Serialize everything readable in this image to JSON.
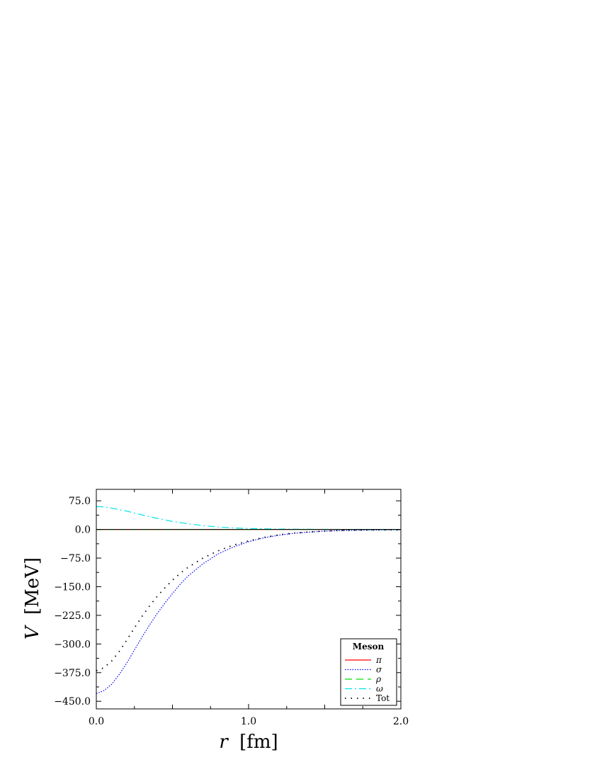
{
  "chart_data": {
    "type": "line",
    "xlabel_var": "r",
    "xlabel_unit": "[fm]",
    "ylabel_var": "V",
    "ylabel_unit": "[MeV]",
    "xlim": [
      0.0,
      2.0
    ],
    "ylim": [
      -470,
      105
    ],
    "x_ticks": [
      0.0,
      1.0,
      2.0
    ],
    "x_tick_labels": [
      "0.0",
      "1.0",
      "2.0"
    ],
    "y_ticks": [
      75,
      0,
      -75,
      -150,
      -225,
      -300,
      -375,
      -450
    ],
    "y_tick_labels": [
      "75.0",
      "0.0",
      "−75.0",
      "−150.0",
      "−225.0",
      "−300.0",
      "−375.0",
      "−450.0"
    ],
    "grid": false,
    "legend_position": "bottom-right",
    "legend_title": "Meson",
    "series": [
      {
        "name": "π",
        "color": "#ff0000",
        "style": "solid",
        "x": [
          0.0,
          0.25,
          0.5,
          0.75,
          1.0,
          1.25,
          1.5,
          1.75,
          2.0
        ],
        "y": [
          0,
          0,
          0,
          0,
          0,
          0,
          0,
          0,
          0
        ]
      },
      {
        "name": "σ",
        "color": "#0000ff",
        "style": "dotted",
        "x": [
          0.0,
          0.05,
          0.1,
          0.15,
          0.2,
          0.25,
          0.3,
          0.35,
          0.4,
          0.45,
          0.5,
          0.55,
          0.6,
          0.7,
          0.8,
          0.9,
          1.0,
          1.1,
          1.2,
          1.3,
          1.4,
          1.5,
          1.6,
          1.8,
          2.0
        ],
        "y": [
          -430,
          -422,
          -406,
          -380,
          -350,
          -316,
          -282,
          -250,
          -220,
          -193,
          -168,
          -144,
          -123,
          -90,
          -64,
          -46,
          -32,
          -22,
          -15,
          -10,
          -7,
          -4.5,
          -3,
          -1.5,
          -1
        ]
      },
      {
        "name": "ρ",
        "color": "#00dd00",
        "style": "dashed",
        "x": [
          0.0,
          0.25,
          0.5,
          0.75,
          1.0,
          1.25,
          1.5,
          1.75,
          2.0
        ],
        "y": [
          0,
          0,
          0,
          0,
          0,
          0,
          0,
          0,
          0
        ]
      },
      {
        "name": "ω",
        "color": "#00e5e5",
        "style": "dashdot",
        "x": [
          0.0,
          0.05,
          0.1,
          0.2,
          0.3,
          0.4,
          0.5,
          0.6,
          0.7,
          0.8,
          0.9,
          1.0,
          1.2,
          1.4,
          1.6,
          2.0
        ],
        "y": [
          60,
          59,
          56,
          48,
          38,
          29,
          21,
          15,
          10,
          6.5,
          4,
          2.5,
          1,
          0.4,
          0.1,
          0
        ]
      },
      {
        "name": "Tot",
        "color": "#000000",
        "style": "sparse-dotted",
        "x": [
          0.0,
          0.05,
          0.1,
          0.15,
          0.2,
          0.25,
          0.3,
          0.35,
          0.4,
          0.45,
          0.5,
          0.55,
          0.6,
          0.7,
          0.8,
          0.9,
          1.0,
          1.1,
          1.2,
          1.3,
          1.4,
          1.5,
          1.6,
          1.8,
          2.0
        ],
        "y": [
          -370,
          -362,
          -345,
          -320,
          -290,
          -258,
          -228,
          -200,
          -175,
          -153,
          -133,
          -115,
          -100,
          -75,
          -56,
          -41,
          -30,
          -21,
          -14,
          -9.5,
          -6.5,
          -4.2,
          -2.8,
          -1.4,
          -1
        ]
      }
    ]
  }
}
